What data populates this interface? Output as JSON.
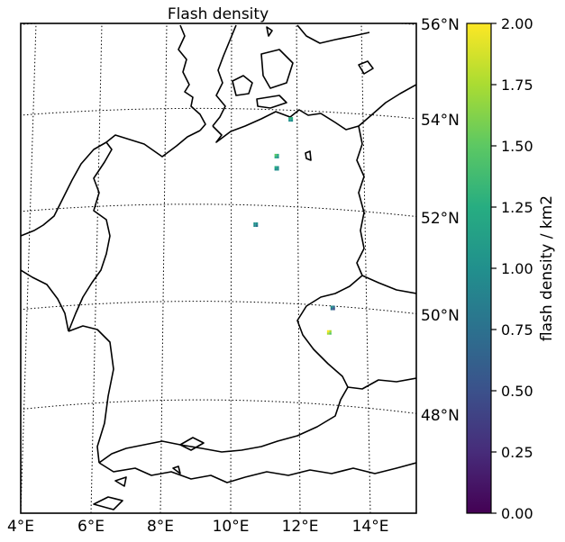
{
  "map": {
    "title": "Flash density",
    "lon_labels": [
      "4°E",
      "6°E",
      "8°E",
      "10°E",
      "12°E",
      "14°E"
    ],
    "lat_labels": [
      "56°N",
      "54°N",
      "52°N",
      "50°N",
      "48°N"
    ],
    "extent": {
      "lon_min": 4.0,
      "lon_max": 15.3,
      "lat_min": 46.0,
      "lat_max": 56.0
    },
    "projection": "conic (curved graticule)",
    "graticule_style": "dotted",
    "region": "Germany and neighbouring countries"
  },
  "colorbar": {
    "label": "flash density / km2",
    "colormap": "viridis",
    "ticks": [
      "0.00",
      "0.25",
      "0.50",
      "0.75",
      "1.00",
      "1.25",
      "1.50",
      "1.75",
      "2.00"
    ],
    "min": 0.0,
    "max": 2.0
  },
  "flash_clusters": [
    {
      "lon": 11.7,
      "lat": 54.05,
      "value": 1.3
    },
    {
      "lon": 11.3,
      "lat": 53.3,
      "value": 1.4
    },
    {
      "lon": 11.3,
      "lat": 53.05,
      "value": 1.2
    },
    {
      "lon": 10.7,
      "lat": 51.9,
      "value": 1.1
    },
    {
      "lon": 12.9,
      "lat": 50.2,
      "value": 0.9
    },
    {
      "lon": 12.8,
      "lat": 49.7,
      "value": 1.9
    }
  ],
  "colors": {
    "coastline": "#000000",
    "graticule": "#000000",
    "viridis_low": "#440154",
    "viridis_high": "#fde725"
  }
}
